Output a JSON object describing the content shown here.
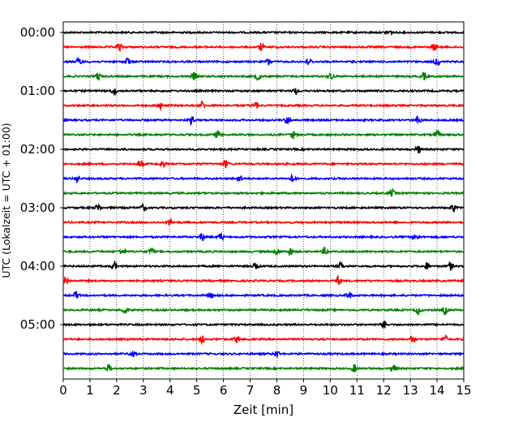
{
  "chart_data": {
    "type": "line",
    "subtype": "helicorder",
    "xlabel": "Zeit  [min]",
    "ylabel": "UTC (Lokalzeit = UTC + 01:00)",
    "xlim": [
      0,
      15
    ],
    "x_ticks": [
      "0",
      "1",
      "2",
      "3",
      "4",
      "5",
      "6",
      "7",
      "8",
      "9",
      "10",
      "11",
      "12",
      "13",
      "14",
      "15"
    ],
    "x_grid": "dotted vertical lines at every minute",
    "y_tick_labels": [
      "00:00",
      "01:00",
      "02:00",
      "03:00",
      "04:00",
      "05:00"
    ],
    "trace_interval_min": 15,
    "trace_colors_cycle": [
      "#000000",
      "#ff0000",
      "#0000ff",
      "#008000"
    ],
    "trace_count": 24,
    "traces": [
      {
        "start": "00:00",
        "color": "#000000",
        "events_min": [
          12.2
        ]
      },
      {
        "start": "00:15",
        "color": "#ff0000",
        "events_min": [
          2.1,
          7.4,
          13.9
        ]
      },
      {
        "start": "00:30",
        "color": "#0000ff",
        "events_min": [
          0.6,
          2.4,
          7.7,
          9.2,
          14.0
        ]
      },
      {
        "start": "00:45",
        "color": "#008000",
        "events_min": [
          1.3,
          4.9,
          7.3,
          10.0,
          13.5
        ]
      },
      {
        "start": "01:00",
        "color": "#000000",
        "events_min": [
          1.9,
          8.7
        ]
      },
      {
        "start": "01:15",
        "color": "#ff0000",
        "events_min": [
          3.6,
          5.2,
          7.2
        ]
      },
      {
        "start": "01:30",
        "color": "#0000ff",
        "events_min": [
          4.8,
          8.4,
          13.3
        ]
      },
      {
        "start": "01:45",
        "color": "#008000",
        "events_min": [
          5.8,
          8.6,
          14.0
        ]
      },
      {
        "start": "02:00",
        "color": "#000000",
        "events_min": [
          13.3
        ]
      },
      {
        "start": "02:15",
        "color": "#ff0000",
        "events_min": [
          2.9,
          3.7,
          6.1
        ]
      },
      {
        "start": "02:30",
        "color": "#0000ff",
        "events_min": [
          0.5,
          6.6,
          8.6
        ]
      },
      {
        "start": "02:45",
        "color": "#008000",
        "events_min": [
          12.3
        ]
      },
      {
        "start": "03:00",
        "color": "#000000",
        "events_min": [
          1.3,
          3.0,
          14.6
        ]
      },
      {
        "start": "03:15",
        "color": "#ff0000",
        "events_min": [
          4.0
        ]
      },
      {
        "start": "03:30",
        "color": "#0000ff",
        "events_min": [
          5.2,
          5.9,
          13.2
        ]
      },
      {
        "start": "03:45",
        "color": "#008000",
        "events_min": [
          2.2,
          3.3,
          8.0,
          8.5,
          9.8
        ]
      },
      {
        "start": "04:00",
        "color": "#000000",
        "events_min": [
          1.9,
          7.2,
          10.4,
          13.6,
          14.5
        ]
      },
      {
        "start": "04:15",
        "color": "#ff0000",
        "events_min": [
          0.1,
          10.3
        ]
      },
      {
        "start": "04:30",
        "color": "#0000ff",
        "events_min": [
          0.5,
          5.5,
          10.7
        ]
      },
      {
        "start": "04:45",
        "color": "#008000",
        "events_min": [
          2.3,
          13.3,
          14.3
        ]
      },
      {
        "start": "05:00",
        "color": "#000000",
        "events_min": [
          12.0
        ]
      },
      {
        "start": "05:15",
        "color": "#ff0000",
        "events_min": [
          5.2,
          6.5,
          13.1,
          14.3
        ]
      },
      {
        "start": "05:30",
        "color": "#0000ff",
        "events_min": [
          2.6,
          8.0
        ]
      },
      {
        "start": "05:45",
        "color": "#008000",
        "events_min": [
          1.7,
          10.9,
          12.4
        ]
      }
    ]
  }
}
